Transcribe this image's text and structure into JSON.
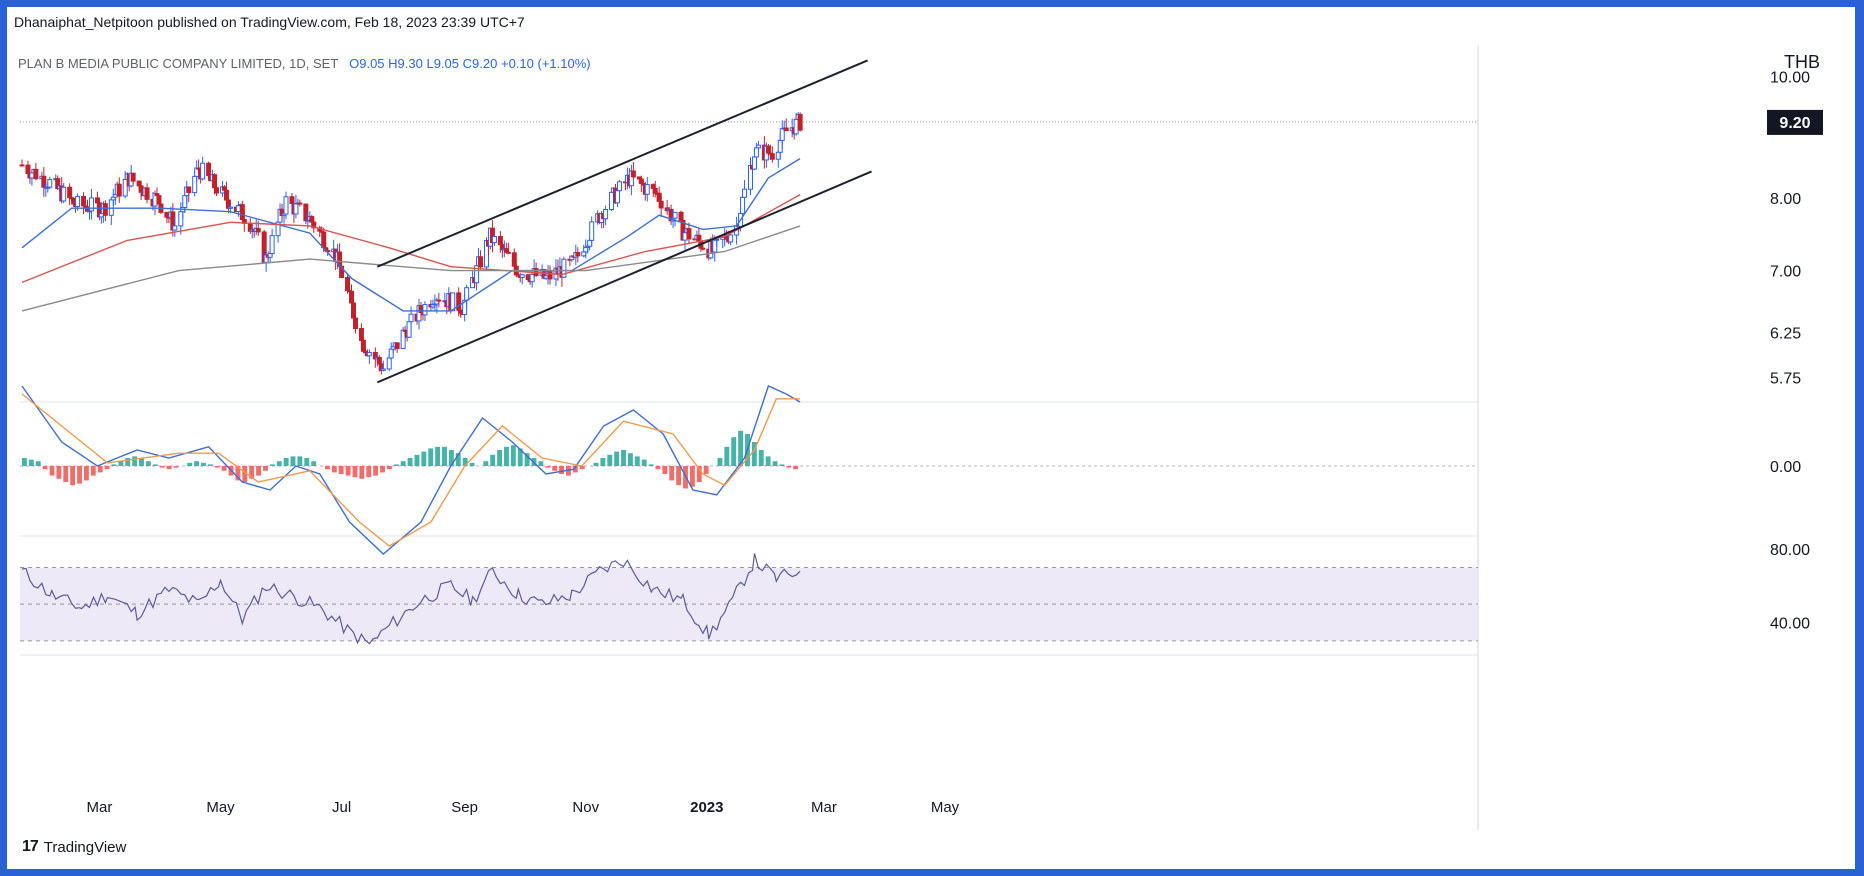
{
  "header": {
    "publisher_line": "Dhanaiphat_Netpitoon published on TradingView.com, Feb 18, 2023 23:39 UTC+7",
    "symbol_line": "PLAN B MEDIA PUBLIC COMPANY LIMITED, 1D, SET",
    "ohlc": {
      "open": "O9.05",
      "high": "H9.30",
      "low": "L9.05",
      "close": "C9.20",
      "change": "+0.10 (+1.10%)"
    },
    "currency": "THB"
  },
  "footer": {
    "brand": "TradingView",
    "logo_glyph": "17"
  },
  "colors": {
    "up": "#2962ff",
    "down": "#c2212b",
    "ema_fast": "#3b6fd6",
    "ema_mid": "#d9534f",
    "ema_slow": "#8a8a8a",
    "channel": "#1e222d",
    "macd": "#3b6fd6",
    "signal": "#f2994a",
    "hist_up": "#26a69a",
    "hist_down": "#ef5350",
    "rsi": "#5b5b9a",
    "rsi_band": "#ede9f7"
  },
  "chart_data": [
    {
      "type": "candlestick",
      "title": "",
      "x_labels": [
        "Mar",
        "May",
        "Jul",
        "Sep",
        "Nov",
        "2023",
        "Mar",
        "May"
      ],
      "y_ticks": [
        "10.00",
        "8.00",
        "7.00",
        "6.25",
        "5.75"
      ],
      "y_range": [
        5.6,
        10.5
      ],
      "y_scale": "log",
      "last_price": "9.20",
      "ohlc_anchors": [
        {
          "date": "2022-01-21",
          "close": 8.5
        },
        {
          "date": "2022-02-03",
          "close": 8.25
        },
        {
          "date": "2022-02-17",
          "close": 7.9
        },
        {
          "date": "2022-03-03",
          "close": 7.85
        },
        {
          "date": "2022-03-16",
          "close": 8.3
        },
        {
          "date": "2022-03-31",
          "close": 7.95
        },
        {
          "date": "2022-04-08",
          "close": 7.6
        },
        {
          "date": "2022-04-20",
          "close": 8.45
        },
        {
          "date": "2022-05-02",
          "close": 8.05
        },
        {
          "date": "2022-05-16",
          "close": 7.65
        },
        {
          "date": "2022-05-24",
          "close": 7.15
        },
        {
          "date": "2022-06-03",
          "close": 7.95
        },
        {
          "date": "2022-06-15",
          "close": 7.7
        },
        {
          "date": "2022-06-28",
          "close": 7.2
        },
        {
          "date": "2022-07-11",
          "close": 6.15
        },
        {
          "date": "2022-07-22",
          "close": 5.85
        },
        {
          "date": "2022-08-03",
          "close": 6.3
        },
        {
          "date": "2022-08-17",
          "close": 6.7
        },
        {
          "date": "2022-08-31",
          "close": 6.55
        },
        {
          "date": "2022-09-14",
          "close": 7.45
        },
        {
          "date": "2022-09-28",
          "close": 7.0
        },
        {
          "date": "2022-10-12",
          "close": 6.9
        },
        {
          "date": "2022-10-26",
          "close": 7.1
        },
        {
          "date": "2022-11-09",
          "close": 7.8
        },
        {
          "date": "2022-11-23",
          "close": 8.3
        },
        {
          "date": "2022-12-07",
          "close": 8.05
        },
        {
          "date": "2022-12-19",
          "close": 7.55
        },
        {
          "date": "2023-01-04",
          "close": 7.25
        },
        {
          "date": "2023-01-16",
          "close": 7.6
        },
        {
          "date": "2023-01-25",
          "close": 8.7
        },
        {
          "date": "2023-02-03",
          "close": 8.7
        },
        {
          "date": "2023-02-10",
          "close": 9.05
        },
        {
          "date": "2023-02-17",
          "close": 9.2
        }
      ],
      "moving_averages": [
        {
          "name": "",
          "color": "#3b6fd6",
          "points": [
            [
              "2022-01-21",
              7.3
            ],
            [
              "2022-02-15",
              7.85
            ],
            [
              "2022-04-01",
              7.85
            ],
            [
              "2022-05-06",
              7.8
            ],
            [
              "2022-06-15",
              7.5
            ],
            [
              "2022-07-06",
              6.9
            ],
            [
              "2022-08-01",
              6.5
            ],
            [
              "2022-08-25",
              6.5
            ],
            [
              "2022-09-25",
              7.0
            ],
            [
              "2022-10-25",
              7.0
            ],
            [
              "2022-11-22",
              7.45
            ],
            [
              "2022-12-08",
              7.75
            ],
            [
              "2022-12-30",
              7.55
            ],
            [
              "2023-01-16",
              7.6
            ],
            [
              "2023-02-01",
              8.3
            ],
            [
              "2023-02-17",
              8.6
            ]
          ]
        },
        {
          "name": "",
          "color": "#d9534f",
          "points": [
            [
              "2022-01-21",
              6.85
            ],
            [
              "2022-03-15",
              7.4
            ],
            [
              "2022-05-06",
              7.65
            ],
            [
              "2022-06-15",
              7.6
            ],
            [
              "2022-07-25",
              7.3
            ],
            [
              "2022-08-25",
              7.05
            ],
            [
              "2022-10-20",
              6.95
            ],
            [
              "2022-12-01",
              7.25
            ],
            [
              "2023-01-10",
              7.45
            ],
            [
              "2023-02-17",
              8.05
            ]
          ]
        },
        {
          "name": "",
          "color": "#8a8a8a",
          "points": [
            [
              "2022-01-21",
              6.5
            ],
            [
              "2022-04-10",
              7.0
            ],
            [
              "2022-06-15",
              7.15
            ],
            [
              "2022-08-25",
              7.0
            ],
            [
              "2022-11-01",
              7.0
            ],
            [
              "2023-01-10",
              7.25
            ],
            [
              "2023-02-17",
              7.6
            ]
          ]
        }
      ],
      "trendlines": [
        {
          "from": [
            "2022-07-19",
            7.05
          ],
          "to": [
            "2023-03-23",
            10.3
          ]
        },
        {
          "from": [
            "2022-07-19",
            5.7
          ],
          "to": [
            "2023-03-25",
            8.4
          ]
        }
      ]
    },
    {
      "type": "line",
      "title": "",
      "y_ticks": [
        "0.00"
      ],
      "series": [
        {
          "name": "",
          "color": "#3b6fd6",
          "points": [
            [
              "2022-01-21",
              0.5
            ],
            [
              "2022-02-10",
              0.15
            ],
            [
              "2022-02-28",
              0.0
            ],
            [
              "2022-03-20",
              0.1
            ],
            [
              "2022-04-05",
              0.05
            ],
            [
              "2022-04-25",
              0.12
            ],
            [
              "2022-05-12",
              -0.1
            ],
            [
              "2022-05-26",
              -0.15
            ],
            [
              "2022-06-08",
              0.0
            ],
            [
              "2022-06-20",
              -0.05
            ],
            [
              "2022-07-05",
              -0.35
            ],
            [
              "2022-07-22",
              -0.55
            ],
            [
              "2022-08-10",
              -0.35
            ],
            [
              "2022-08-25",
              0.0
            ],
            [
              "2022-09-10",
              0.3
            ],
            [
              "2022-09-25",
              0.15
            ],
            [
              "2022-10-12",
              -0.05
            ],
            [
              "2022-10-26",
              -0.02
            ],
            [
              "2022-11-10",
              0.25
            ],
            [
              "2022-11-25",
              0.35
            ],
            [
              "2022-12-10",
              0.2
            ],
            [
              "2022-12-25",
              -0.15
            ],
            [
              "2023-01-06",
              -0.18
            ],
            [
              "2023-01-20",
              0.05
            ],
            [
              "2023-02-01",
              0.5
            ],
            [
              "2023-02-10",
              0.45
            ],
            [
              "2023-02-17",
              0.4
            ]
          ]
        },
        {
          "name": "",
          "color": "#f2994a",
          "points": [
            [
              "2022-01-21",
              0.45
            ],
            [
              "2022-02-15",
              0.2
            ],
            [
              "2022-03-05",
              0.02
            ],
            [
              "2022-04-10",
              0.08
            ],
            [
              "2022-04-30",
              0.08
            ],
            [
              "2022-05-20",
              -0.1
            ],
            [
              "2022-06-15",
              -0.03
            ],
            [
              "2022-07-10",
              -0.35
            ],
            [
              "2022-07-25",
              -0.5
            ],
            [
              "2022-08-15",
              -0.35
            ],
            [
              "2022-09-01",
              0.0
            ],
            [
              "2022-09-20",
              0.25
            ],
            [
              "2022-10-10",
              0.05
            ],
            [
              "2022-10-30",
              0.0
            ],
            [
              "2022-11-20",
              0.28
            ],
            [
              "2022-12-15",
              0.2
            ],
            [
              "2022-12-30",
              -0.05
            ],
            [
              "2023-01-10",
              -0.12
            ],
            [
              "2023-01-25",
              0.1
            ],
            [
              "2023-02-05",
              0.42
            ],
            [
              "2023-02-17",
              0.42
            ]
          ]
        }
      ],
      "histogram": {
        "up_color": "#26a69a",
        "down_color": "#ef5350",
        "values": [
          0.05,
          0.04,
          0.03,
          -0.02,
          -0.06,
          -0.08,
          -0.1,
          -0.12,
          -0.11,
          -0.09,
          -0.06,
          -0.04,
          -0.02,
          0.01,
          0.03,
          0.05,
          0.06,
          0.05,
          0.03,
          0.01,
          -0.01,
          -0.02,
          -0.01,
          0.0,
          0.02,
          0.03,
          0.02,
          0.01,
          -0.01,
          -0.03,
          -0.06,
          -0.09,
          -0.1,
          -0.08,
          -0.06,
          -0.03,
          0.01,
          0.03,
          0.05,
          0.06,
          0.06,
          0.05,
          0.03,
          0.0,
          -0.02,
          -0.04,
          -0.05,
          -0.06,
          -0.07,
          -0.08,
          -0.07,
          -0.06,
          -0.04,
          -0.02,
          0.01,
          0.03,
          0.05,
          0.07,
          0.09,
          0.11,
          0.12,
          0.12,
          0.1,
          0.08,
          0.05,
          0.02,
          0.0,
          0.03,
          0.07,
          0.1,
          0.12,
          0.13,
          0.11,
          0.08,
          0.05,
          0.03,
          -0.01,
          -0.03,
          -0.05,
          -0.06,
          -0.04,
          -0.02,
          0.0,
          0.02,
          0.05,
          0.07,
          0.09,
          0.1,
          0.08,
          0.06,
          0.04,
          0.01,
          -0.02,
          -0.05,
          -0.09,
          -0.12,
          -0.14,
          -0.13,
          -0.1,
          -0.05,
          0.0,
          0.05,
          0.12,
          0.18,
          0.22,
          0.2,
          0.15,
          0.1,
          0.06,
          0.03,
          0.01,
          -0.01,
          -0.02
        ]
      }
    },
    {
      "type": "line",
      "title": "",
      "y_ticks": [
        "80.00",
        "40.00"
      ],
      "y_range": [
        25,
        85
      ],
      "bands": [
        70,
        50,
        30
      ],
      "series": [
        {
          "name": "",
          "color": "#5b5b9a",
          "points": [
            [
              "2022-01-21",
              68
            ],
            [
              "2022-02-05",
              55
            ],
            [
              "2022-02-20",
              48
            ],
            [
              "2022-03-05",
              55
            ],
            [
              "2022-03-20",
              45
            ],
            [
              "2022-04-05",
              58
            ],
            [
              "2022-04-20",
              50
            ],
            [
              "2022-05-01",
              63
            ],
            [
              "2022-05-12",
              42
            ],
            [
              "2022-05-24",
              60
            ],
            [
              "2022-06-05",
              55
            ],
            [
              "2022-06-20",
              48
            ],
            [
              "2022-07-05",
              35
            ],
            [
              "2022-07-15",
              28
            ],
            [
              "2022-07-25",
              38
            ],
            [
              "2022-08-10",
              52
            ],
            [
              "2022-08-25",
              60
            ],
            [
              "2022-09-05",
              52
            ],
            [
              "2022-09-15",
              68
            ],
            [
              "2022-09-28",
              55
            ],
            [
              "2022-10-10",
              50
            ],
            [
              "2022-10-25",
              55
            ],
            [
              "2022-11-08",
              68
            ],
            [
              "2022-11-20",
              74
            ],
            [
              "2022-12-05",
              58
            ],
            [
              "2022-12-20",
              52
            ],
            [
              "2023-01-02",
              33
            ],
            [
              "2023-01-12",
              48
            ],
            [
              "2023-01-25",
              74
            ],
            [
              "2023-02-05",
              64
            ],
            [
              "2023-02-17",
              68
            ]
          ]
        }
      ]
    }
  ]
}
